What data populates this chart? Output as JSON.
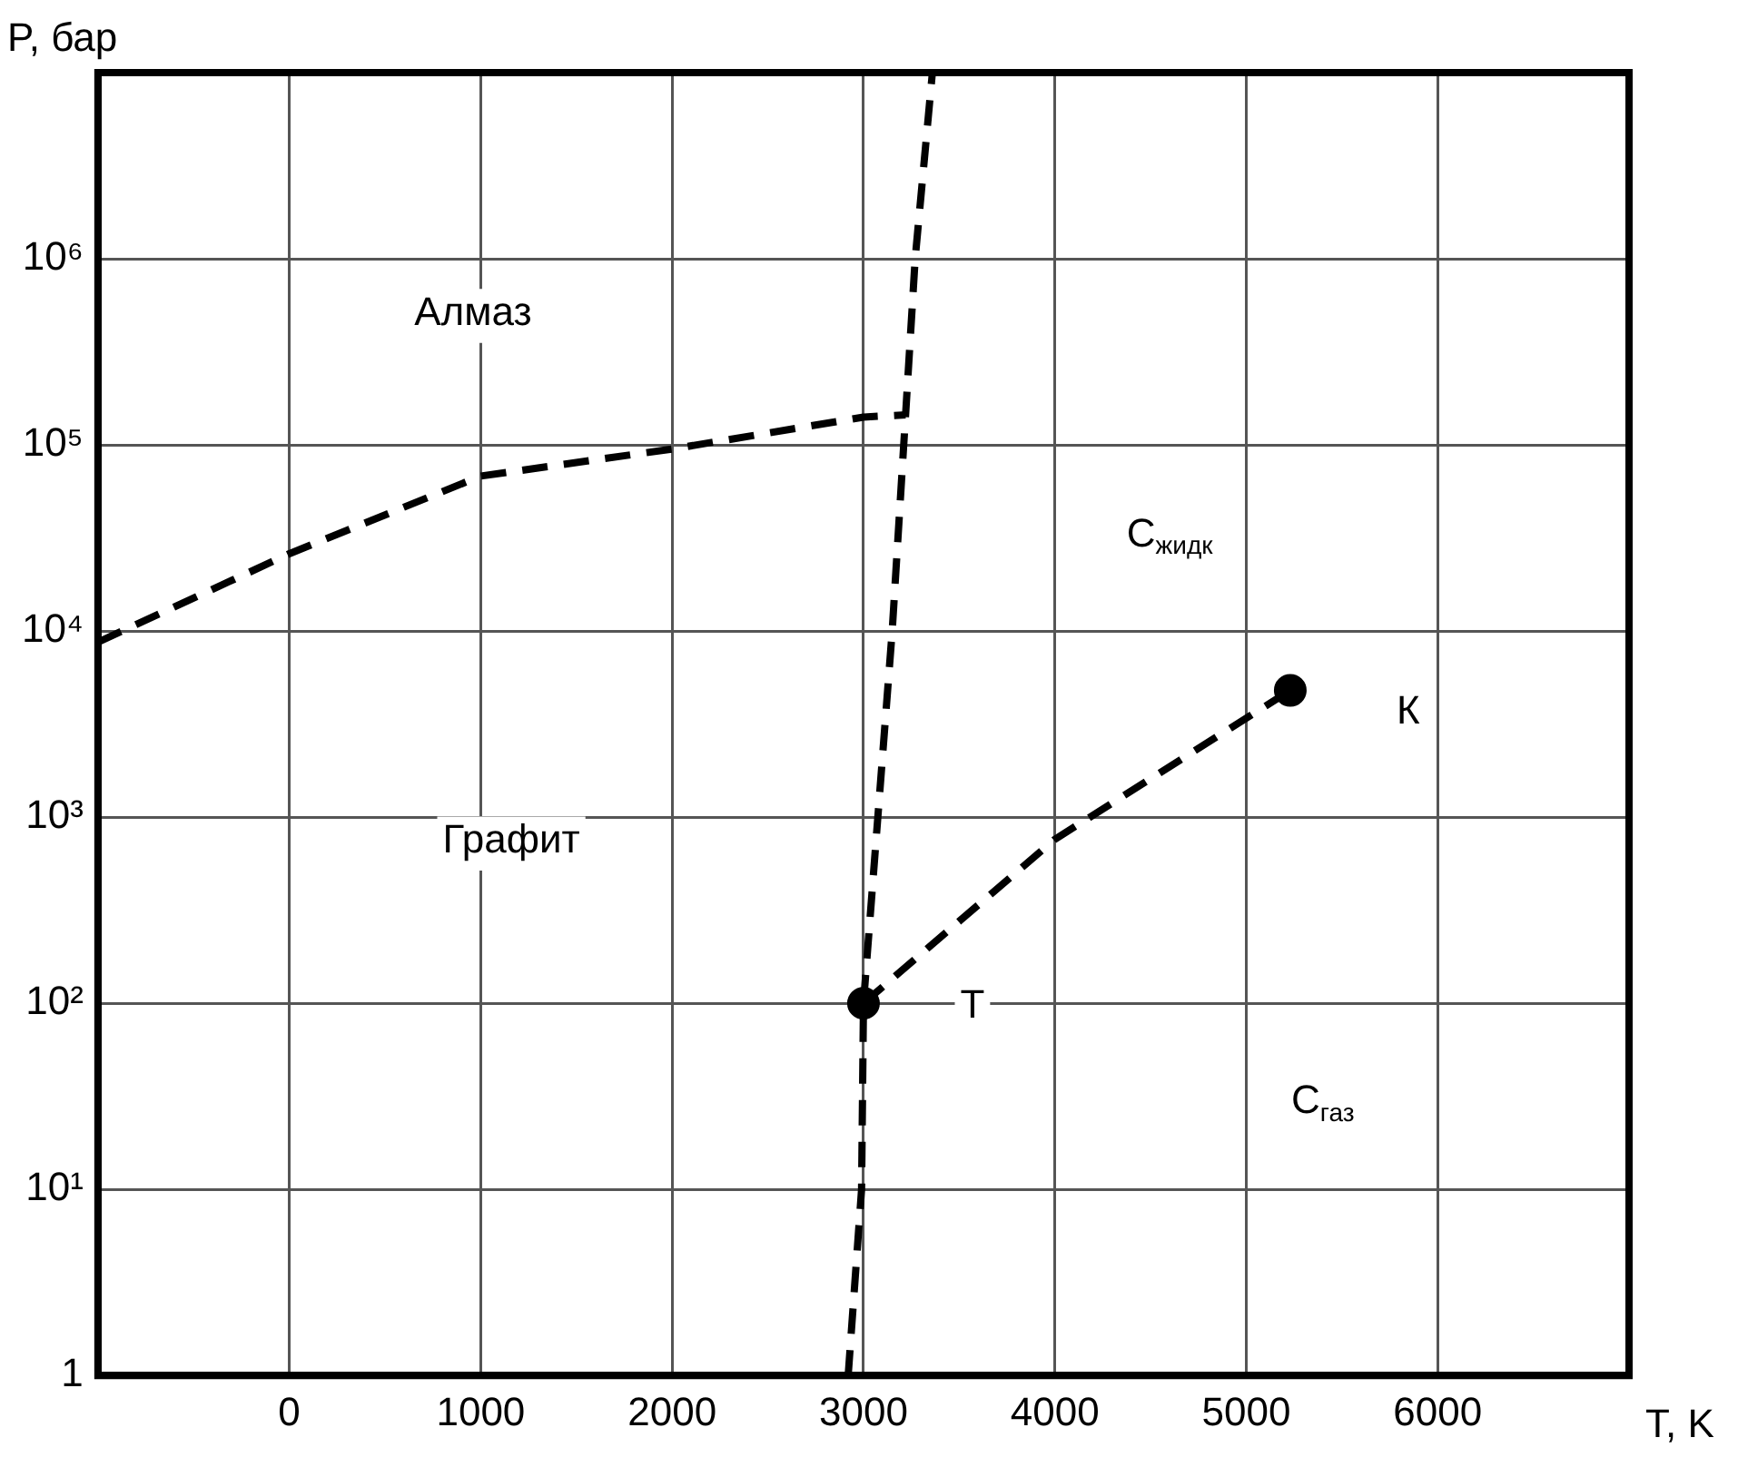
{
  "chart_data": {
    "type": "line",
    "xlabel": "T, K",
    "ylabel": "P, бар",
    "xlim": [
      -1000,
      7000
    ],
    "xticks": [
      0,
      1000,
      2000,
      3000,
      4000,
      5000,
      6000
    ],
    "ylim": [
      1,
      10000000
    ],
    "yticks": [
      1,
      {
        "value": 10,
        "label": "10¹"
      },
      {
        "value": 100,
        "label": "10²"
      },
      {
        "value": 1000,
        "label": "10³"
      },
      {
        "value": 10000,
        "label": "10⁴"
      },
      {
        "value": 100000,
        "label": "10⁵"
      },
      {
        "value": 1000000,
        "label": "10⁶"
      },
      {
        "value": 10000000,
        "label": null
      }
    ],
    "log": "y",
    "grid": true,
    "legend": false,
    "line_style": "dashed",
    "series": [
      {
        "marker": "none",
        "color": "#000000",
        "x": [
          -1000,
          0,
          1000,
          2000,
          3000,
          3220
        ],
        "values": [
          8700,
          26000,
          68000,
          95000,
          141000,
          145000
        ]
      },
      {
        "marker": "none",
        "color": "#000000",
        "x": [
          2920,
          2990,
          3000,
          3075,
          3150,
          3220,
          3270,
          3360
        ],
        "values": [
          1,
          10,
          100,
          1000,
          10000,
          145000,
          1000000,
          10000000
        ]
      },
      {
        "marker": "none",
        "color": "#000000",
        "x": [
          3000,
          4000,
          5230
        ],
        "values": [
          100,
          760,
          4800
        ]
      },
      {
        "type": "scatter",
        "marker": "circle",
        "color": "#000000",
        "x": [
          3000,
          5230
        ],
        "values": [
          100,
          4800
        ]
      }
    ],
    "annotations": [
      "Алмаз",
      "Графит",
      "C$_{жидк}$",
      "C$_{газ}$",
      {
        "text": "Т",
        "x": 3000,
        "y": 100
      },
      {
        "text": "К",
        "x": 5230,
        "y": 4800
      }
    ]
  }
}
